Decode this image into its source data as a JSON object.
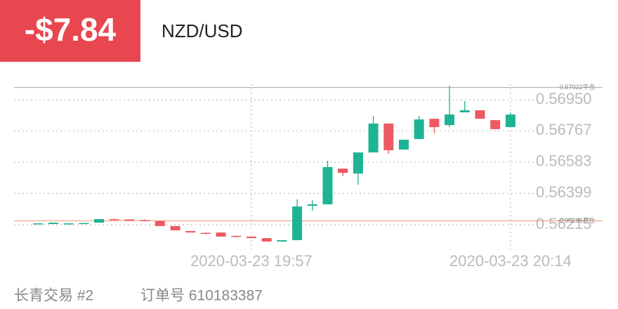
{
  "header": {
    "pnl": "-$7.84",
    "symbol": "NZD/USD"
  },
  "chart_data": {
    "type": "candlestick",
    "categories": [
      null,
      null,
      null,
      null,
      null,
      null,
      null,
      null,
      null,
      null,
      null,
      null,
      null,
      null,
      "2020-03-23 19:57",
      null,
      null,
      null,
      null,
      null,
      null,
      null,
      null,
      null,
      null,
      null,
      null,
      null,
      null,
      null,
      null,
      "2020-03-23 20:14"
    ],
    "open": [
      0.56221,
      0.56219,
      0.56223,
      0.56221,
      0.56227,
      0.56248,
      0.56246,
      0.56242,
      0.56236,
      0.56207,
      0.56178,
      0.56167,
      0.56169,
      0.56149,
      0.56145,
      0.56136,
      0.56116,
      0.56124,
      0.56326,
      0.56335,
      0.56545,
      0.56516,
      0.5664,
      0.5681,
      0.56657,
      0.56719,
      0.56838,
      0.56801,
      0.56876,
      0.56888,
      0.5683,
      0.56789
    ],
    "high": [
      0.56223,
      0.56227,
      0.56225,
      0.56225,
      0.56248,
      0.56252,
      0.56248,
      0.56246,
      0.5624,
      0.56207,
      0.56178,
      0.56169,
      0.56169,
      0.56153,
      0.56145,
      0.56136,
      0.56124,
      0.56364,
      0.56359,
      0.56591,
      0.56545,
      0.5664,
      0.56855,
      0.5681,
      0.56715,
      0.56855,
      0.56838,
      0.57033,
      0.56942,
      0.56888,
      0.5683,
      0.56876
    ],
    "low": [
      0.56219,
      0.56219,
      0.56221,
      0.56221,
      0.56227,
      0.56244,
      0.5624,
      0.56236,
      0.56207,
      0.56182,
      0.56169,
      0.56161,
      0.56145,
      0.56145,
      0.56136,
      0.56116,
      0.56116,
      0.56124,
      0.56297,
      0.56335,
      0.565,
      0.5645,
      0.5664,
      0.56632,
      0.56657,
      0.56719,
      0.56752,
      0.56789,
      0.56876,
      0.56838,
      0.56777,
      0.56789
    ],
    "close": [
      0.56223,
      0.56227,
      0.56223,
      0.56225,
      0.56248,
      0.56246,
      0.56244,
      0.5624,
      0.56207,
      0.56182,
      0.56169,
      0.56165,
      0.56145,
      0.56147,
      0.56136,
      0.56116,
      0.56124,
      0.56322,
      0.56335,
      0.56554,
      0.5652,
      0.5664,
      0.5681,
      0.56653,
      0.56715,
      0.56834,
      0.56789,
      0.56863,
      0.56888,
      0.56838,
      0.56777,
      0.56863
    ],
    "up_color": "#1db394",
    "down_color": "#ec5a62",
    "ylim": [
      0.56091,
      0.57041
    ],
    "yticks": [
      {
        "value": 0.5695,
        "label": "0.56950"
      },
      0.56767,
      0.56583,
      0.56399,
      0.56215
    ],
    "grid": true,
    "reference_lines": [
      {
        "value": 0.57022,
        "label": "0.57022平仓",
        "color": "#aaaaaa"
      },
      {
        "value": 0.56238,
        "label": "0.56238开仓",
        "color": "#f0956a"
      }
    ]
  },
  "footer": {
    "account": "长青交易 #2",
    "order": "订单号 610183387"
  }
}
